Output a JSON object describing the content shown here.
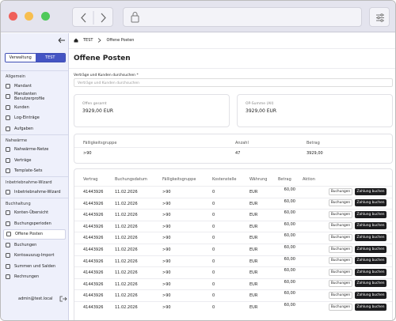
{
  "sidebar": {
    "toggle": [
      "Verwaltung",
      "TEST"
    ],
    "sections": [
      {
        "title": "Allgemein",
        "items": [
          "Mandant",
          "Mandanten Benutzerprofile",
          "Kunden",
          "Log-Einträge",
          "Aufgaben"
        ]
      },
      {
        "title": "Nahwärme",
        "items": [
          "Nahwärme-Netze",
          "Verträge",
          "Template-Sets"
        ]
      },
      {
        "title": "Inbetriebnahme-Wizard",
        "items": [
          "Inbetriebnahme-Wizard"
        ]
      },
      {
        "title": "Buchhaltung",
        "items": [
          "Konten-Übersicht",
          "Buchungsperioden",
          "Offene Posten",
          "Buchungen",
          "Kontoauszug-Import",
          "Summen und Salden",
          "Rechnungen"
        ]
      }
    ],
    "user": "admin@test.local"
  },
  "breadcrumb": [
    "TEST",
    "Offene Posten"
  ],
  "title": "Offene Posten",
  "search": {
    "label": "Verträge und Kunden durchsuchen *",
    "placeholder": "Verträge und Kunden durchsuchen"
  },
  "cards": [
    {
      "label": "Offen gesamt",
      "value": "3929,00 EUR"
    },
    {
      "label": "OP-Summe (All)",
      "value": "3929,00 EUR"
    }
  ],
  "groups": {
    "columns": [
      "Fälligkeitsgruppe",
      "Anzahl",
      "Betrag"
    ],
    "rows": [
      [
        ">90",
        "47",
        "3929,00"
      ]
    ]
  },
  "table": {
    "columns": [
      "Vertrag",
      "Buchungsdatum",
      "Fälligkeitsgruppe",
      "Kostenstelle",
      "Währung",
      "Betrag",
      "Aktion"
    ],
    "rows": [
      [
        "41443926",
        "11.02.2026",
        ">90",
        "0",
        "EUR",
        "60,00"
      ],
      [
        "41443926",
        "11.02.2026",
        ">90",
        "0",
        "EUR",
        "60,00"
      ],
      [
        "41443926",
        "11.02.2026",
        ">90",
        "0",
        "EUR",
        "60,00"
      ],
      [
        "41443926",
        "11.02.2026",
        ">90",
        "0",
        "EUR",
        "60,00"
      ],
      [
        "41443926",
        "11.02.2026",
        ">90",
        "0",
        "EUR",
        "60,00"
      ],
      [
        "41443926",
        "11.02.2026",
        ">90",
        "0",
        "EUR",
        "60,00"
      ],
      [
        "41443926",
        "11.02.2026",
        ">90",
        "0",
        "EUR",
        "60,00"
      ],
      [
        "41443926",
        "11.02.2026",
        ">90",
        "0",
        "EUR",
        "60,00"
      ],
      [
        "41443926",
        "11.02.2026",
        ">90",
        "0",
        "EUR",
        "60,00"
      ],
      [
        "41443926",
        "11.02.2026",
        ">90",
        "0",
        "EUR",
        "60,00"
      ],
      [
        "41443926",
        "11.02.2026",
        ">90",
        "0",
        "EUR",
        "60,00"
      ]
    ],
    "actions": [
      "Buchungen",
      "Zahlung buchen"
    ]
  }
}
